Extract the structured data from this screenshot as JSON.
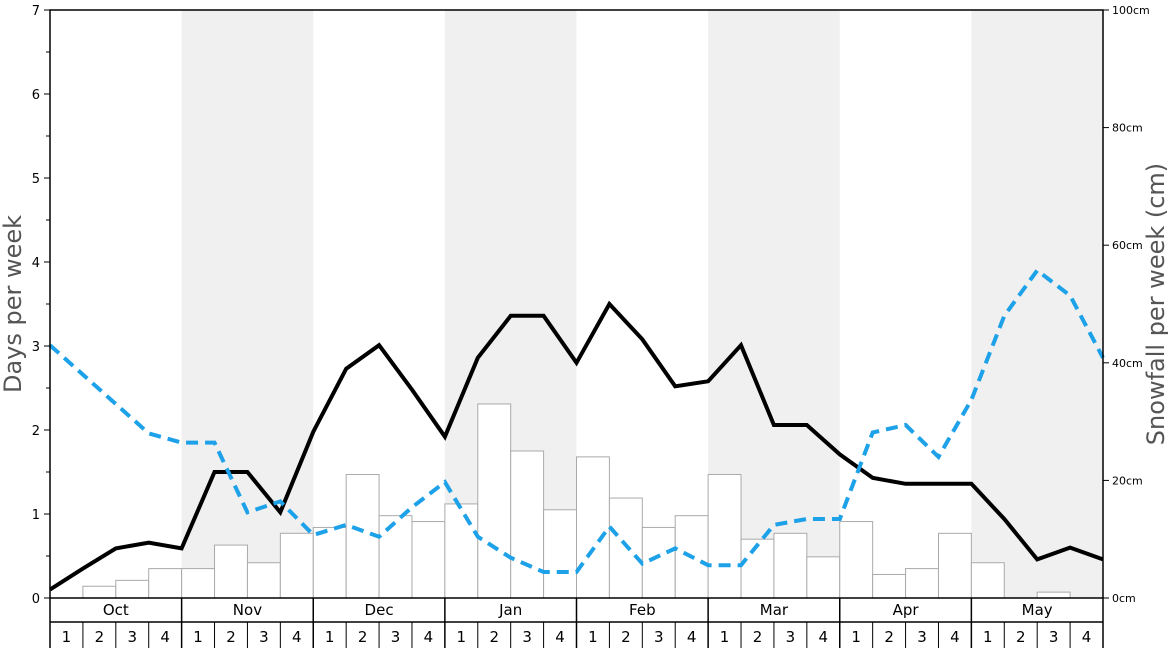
{
  "chart_data": {
    "type": "bar",
    "ylabel_left": "Days per week",
    "ylabel_right": "Snowfall per week (cm)",
    "ylim_left": [
      0,
      7
    ],
    "ylim_right": [
      0,
      100
    ],
    "left_ticks": [
      "0",
      "1",
      "2",
      "3",
      "4",
      "5",
      "6",
      "7"
    ],
    "right_ticks": [
      "0cm",
      "20cm",
      "40cm",
      "60cm",
      "80cm",
      "100cm"
    ],
    "months": [
      "Oct",
      "Nov",
      "Dec",
      "Jan",
      "Feb",
      "Mar",
      "Apr",
      "May"
    ],
    "week_labels": [
      "1",
      "2",
      "3",
      "4"
    ],
    "series": [
      {
        "kind": "bar",
        "axis": "right",
        "color": "#ffffff",
        "values": [
          0,
          2,
          3,
          5,
          5,
          9,
          6,
          11,
          12,
          21,
          14,
          13,
          16,
          33,
          25,
          15,
          24,
          17,
          12,
          14,
          21,
          10,
          11,
          7,
          13,
          4,
          5,
          11,
          6,
          0,
          1,
          0
        ]
      },
      {
        "kind": "line",
        "axis": "left",
        "color": "#000000",
        "style": "solid",
        "values": [
          0.1,
          0.35,
          0.59,
          0.66,
          0.59,
          1.5,
          1.5,
          1.02,
          1.98,
          2.73,
          3.01,
          2.48,
          1.92,
          2.86,
          3.36,
          3.36,
          2.8,
          3.5,
          3.08,
          2.52,
          2.58,
          3.01,
          2.06,
          2.06,
          1.71,
          1.43,
          1.36,
          1.36,
          1.36,
          0.94,
          0.46,
          0.6,
          0.46
        ]
      },
      {
        "kind": "line",
        "axis": "left",
        "color": "#1da1e8",
        "style": "dashed",
        "values": [
          3.01,
          2.66,
          2.31,
          1.96,
          1.85,
          1.85,
          1.02,
          1.15,
          0.75,
          0.87,
          0.73,
          1.08,
          1.38,
          0.73,
          0.48,
          0.31,
          0.31,
          0.85,
          0.41,
          0.59,
          0.39,
          0.39,
          0.87,
          0.94,
          0.94,
          1.97,
          2.06,
          1.68,
          2.36,
          3.36,
          3.9,
          3.6,
          2.86
        ]
      }
    ],
    "shaded_months": [
      "Nov",
      "Jan",
      "Mar",
      "May"
    ]
  }
}
